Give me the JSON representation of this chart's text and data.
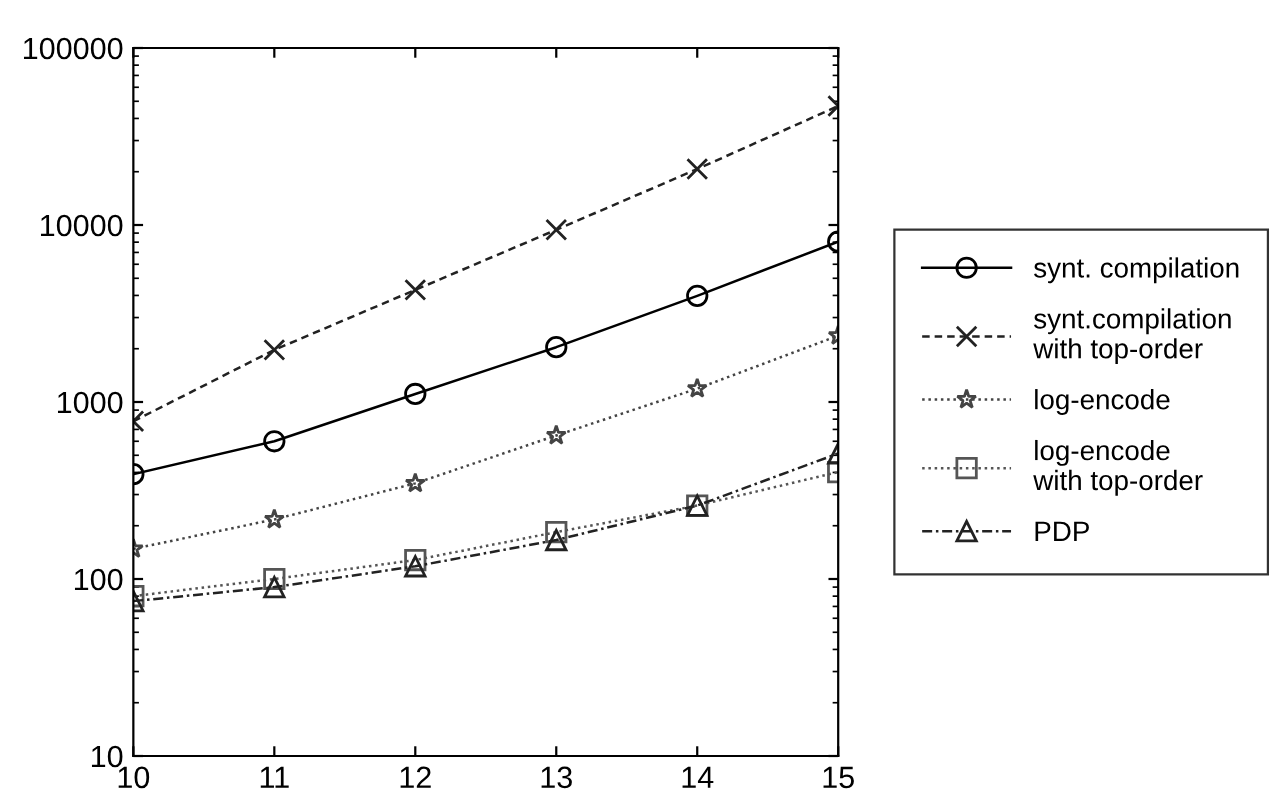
{
  "chart_data": {
    "type": "line",
    "x": [
      10,
      11,
      12,
      13,
      14,
      15
    ],
    "log": "y",
    "xlim": [
      10,
      15
    ],
    "ylim": [
      10,
      100000
    ],
    "xticks": [
      10,
      11,
      12,
      13,
      14,
      15
    ],
    "yticks": [
      10,
      100,
      1000,
      10000,
      100000
    ],
    "grid": false,
    "legend": "right",
    "series": [
      {
        "name": "synt. compilation",
        "color": "#000000",
        "marker": "circle",
        "line_style": "solid",
        "values": [
          391,
          600,
          1110,
          2040,
          3980,
          8050
        ]
      },
      {
        "name": "synt.compilation\nwith top-order",
        "color": "#222222",
        "marker": "cross",
        "line_style": "dashed",
        "values": [
          778,
          1970,
          4300,
          9400,
          20700,
          47000
        ]
      },
      {
        "name": "log-encode",
        "color": "#444444",
        "marker": "star",
        "line_style": "dotted",
        "values": [
          148,
          217,
          347,
          647,
          1190,
          2370
        ]
      },
      {
        "name": "log-encode\nwith top-order",
        "color": "#555555",
        "marker": "square",
        "line_style": "dotted",
        "values": [
          80,
          100,
          128,
          184,
          260,
          402
        ]
      },
      {
        "name": "PDP",
        "color": "#222222",
        "marker": "triangle",
        "line_style": "dashdot",
        "values": [
          75,
          90,
          118,
          166,
          260,
          512
        ]
      }
    ]
  }
}
